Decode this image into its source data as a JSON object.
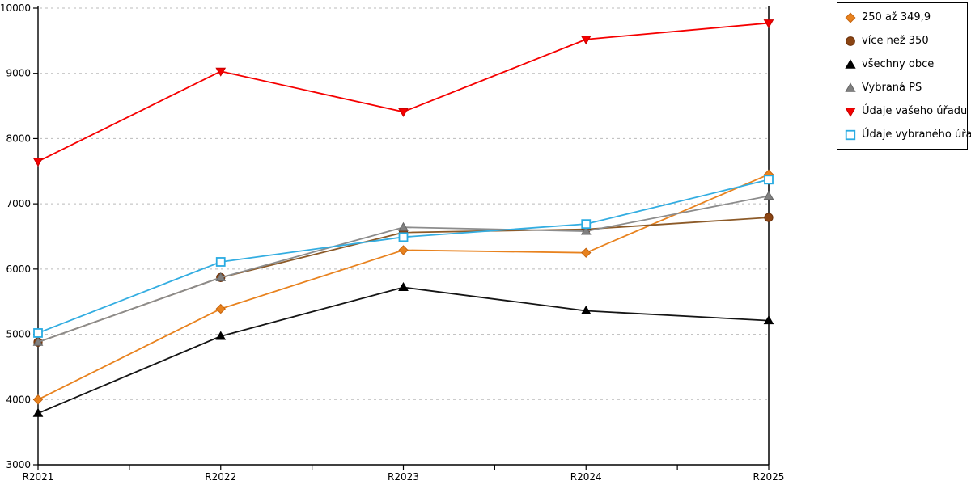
{
  "chart_data": {
    "type": "line",
    "categories": [
      "R2021",
      "R2022",
      "R2023",
      "R2024",
      "R2025"
    ],
    "series": [
      {
        "name": "250 až 349,9",
        "marker": "diamond",
        "color": "#E8821E",
        "edge_color": "#C3620C",
        "line_color": "#E8821E",
        "values": [
          4000,
          5390,
          6290,
          6250,
          7450
        ]
      },
      {
        "name": "více než 350",
        "marker": "circle",
        "color": "#8B4513",
        "edge_color": "#6B3009",
        "line_color": "#8C5A28",
        "values": [
          4880,
          5870,
          6560,
          6610,
          6790
        ]
      },
      {
        "name": "všechny obce",
        "marker": "triangle-up",
        "color": "#000000",
        "edge_color": "#000000",
        "line_color": "#151515",
        "values": [
          3790,
          4970,
          5720,
          5360,
          5210
        ]
      },
      {
        "name": "Vybraná PS",
        "marker": "triangle-up",
        "color": "#808080",
        "edge_color": "#666666",
        "line_color": "#8C8C8C",
        "values": [
          4880,
          5870,
          6640,
          6580,
          7120
        ]
      },
      {
        "name": "Údaje vašeho úřadu",
        "marker": "triangle-down",
        "color": "#F50000",
        "edge_color": "#C80000",
        "line_color": "#F50000",
        "values": [
          7650,
          9030,
          8410,
          9520,
          9770
        ]
      },
      {
        "name": "Údaje vybraného úřadu",
        "marker": "square-open",
        "color": "#29ABE2",
        "edge_color": "#29ABE2",
        "line_color": "#33ADE1",
        "values": [
          5020,
          6110,
          6490,
          6690,
          7370
        ]
      }
    ],
    "ylim": [
      3000,
      10000
    ],
    "ytick_step": 1000,
    "ytick_labels": [
      "3000",
      "4000",
      "5000",
      "6000",
      "7000",
      "8000",
      "9000",
      "10000"
    ],
    "grid": "horizontal-dashed",
    "gridline_color": "#BBBBBB",
    "axis_color": "#000000",
    "legend_position": "top-right"
  }
}
